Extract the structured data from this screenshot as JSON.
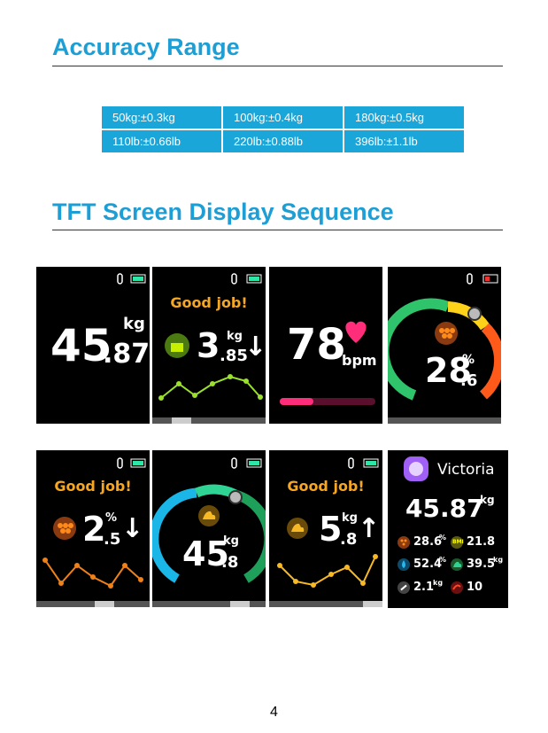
{
  "headings": {
    "accuracy": "Accuracy Range",
    "sequence": "TFT Screen Display Sequence"
  },
  "accuracy_table": [
    [
      "50kg:±0.3kg",
      "100kg:±0.4kg",
      "180kg:±0.5kg"
    ],
    [
      "110lb:±0.66lb",
      "220lb:±0.88lb",
      "396lb:±1.1lb"
    ]
  ],
  "screens": {
    "s1": {
      "int": "45",
      "dec": ".87",
      "unit": "kg"
    },
    "s2": {
      "title": "Good job!",
      "int": "3",
      "dec": ".85",
      "unit": "kg",
      "arrow": "↓"
    },
    "s3": {
      "value": "78",
      "unit": "bpm"
    },
    "s4": {
      "int": "28",
      "dec": ".6",
      "unit": "%"
    },
    "s5": {
      "title": "Good job!",
      "int": "2",
      "dec": ".5",
      "unit": "%",
      "arrow": "↓"
    },
    "s6": {
      "int": "45",
      "dec": ".8",
      "unit": "kg"
    },
    "s7": {
      "title": "Good job!",
      "int": "5",
      "dec": ".8",
      "unit": "kg",
      "arrow": "↑"
    },
    "s8": {
      "name": "Victoria",
      "weight": "45.87",
      "weight_unit": "kg",
      "fat": "28.6",
      "fat_unit": "%",
      "bmi_label": "BMI",
      "bmi": "21.8",
      "water": "52.4",
      "water_unit": "%",
      "muscle": "39.5",
      "muscle_unit": "kg",
      "bone": "2.1",
      "bone_unit": "kg",
      "visceral": "10"
    }
  },
  "colors": {
    "accent": "#1d9fd6",
    "table_bg": "#1aa6d9",
    "good_job": "#f5a623",
    "battery": "#2ee6a8",
    "heart": "#ff2d7a"
  },
  "page_number": "4"
}
